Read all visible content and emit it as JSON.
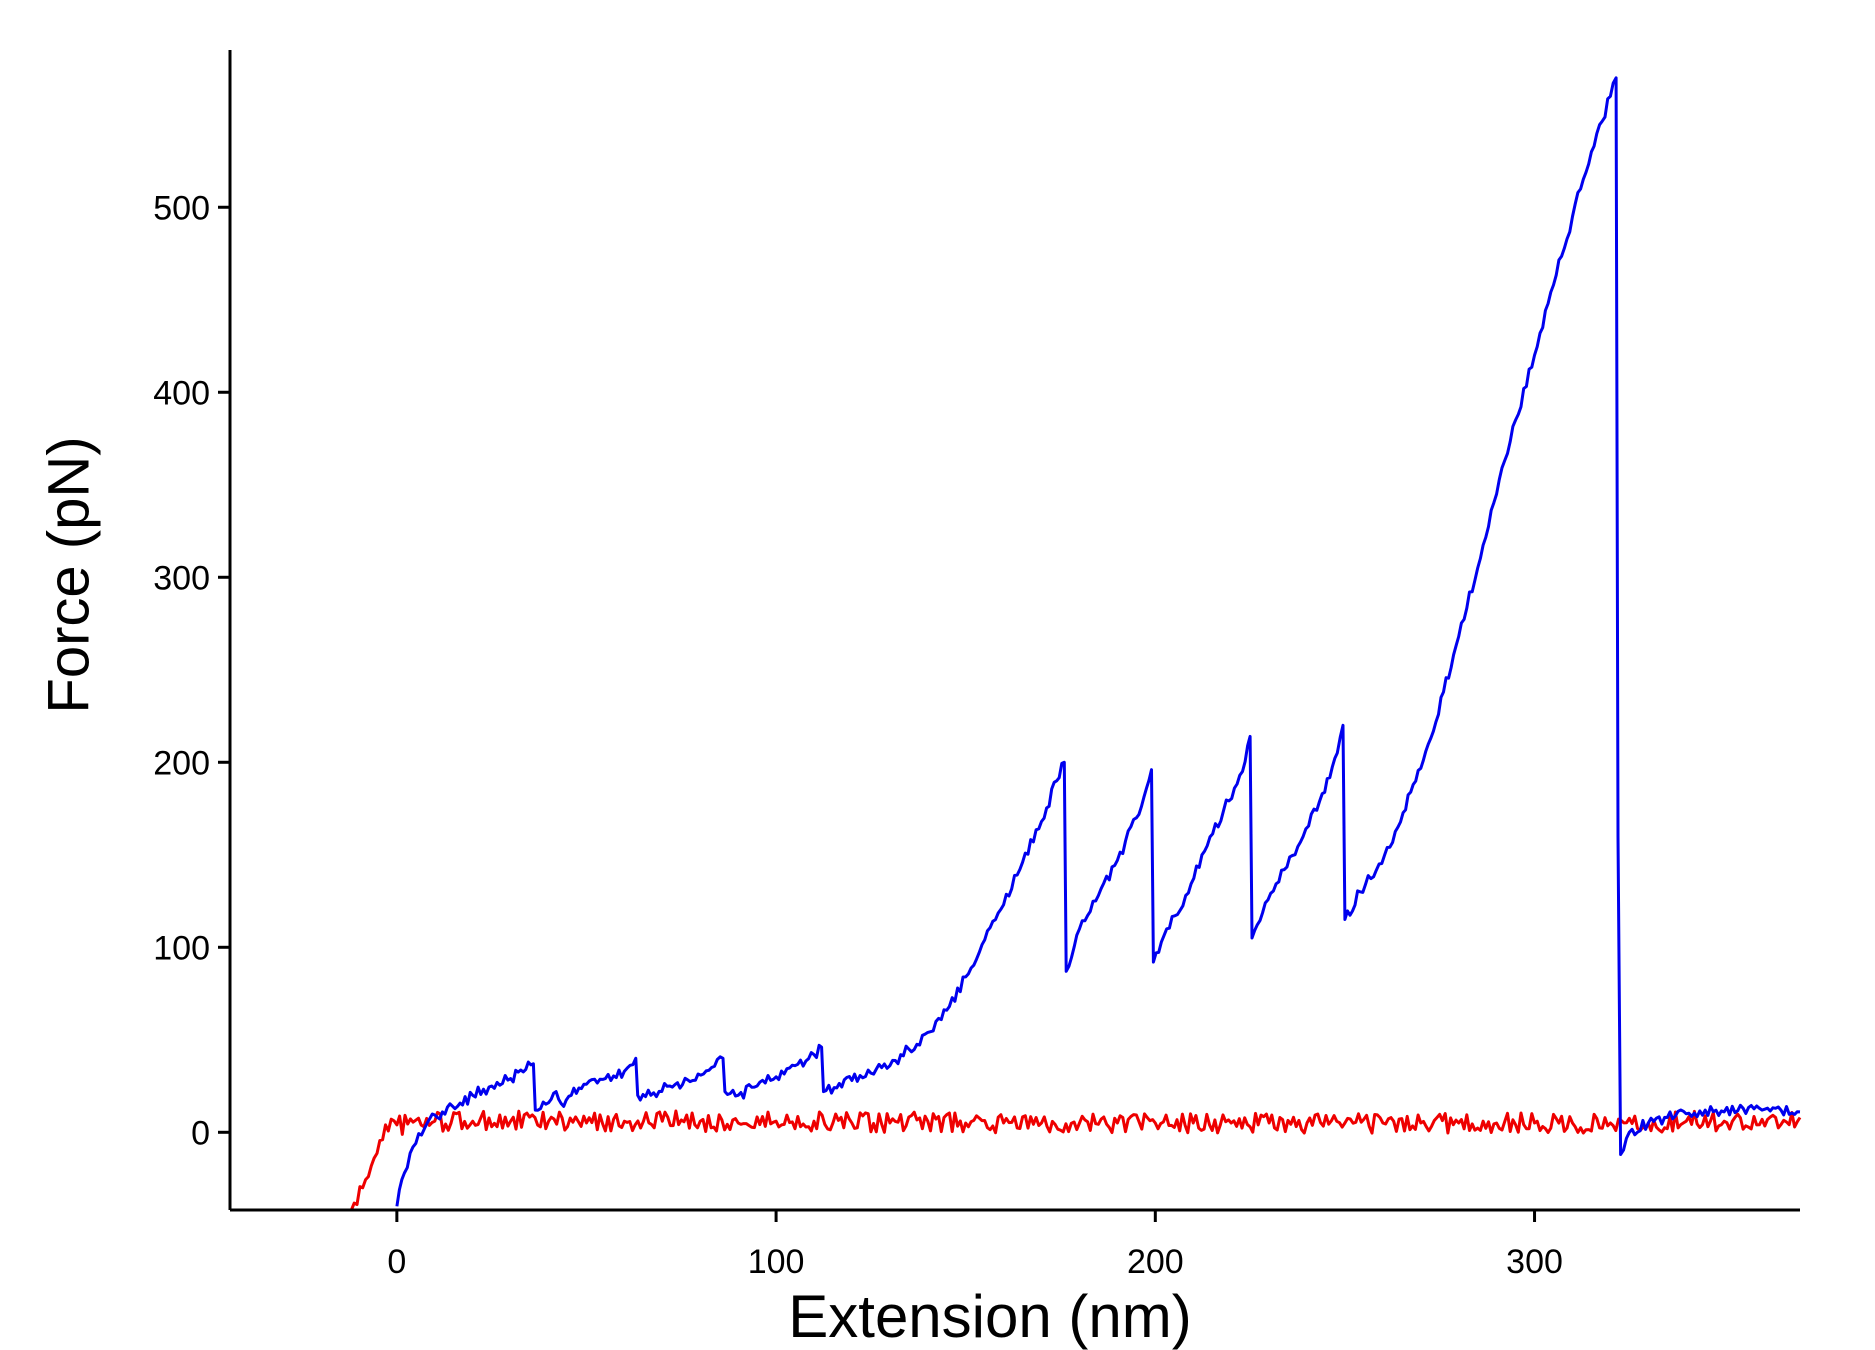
{
  "chart_data": {
    "type": "line",
    "title": "",
    "xlabel": "Extension (nm)",
    "ylabel": "Force (pN)",
    "xlim": [
      -44,
      370
    ],
    "ylim": [
      -42,
      585
    ],
    "x_ticks": [
      0,
      100,
      200,
      300
    ],
    "y_ticks": [
      0,
      100,
      200,
      300,
      400,
      500
    ],
    "grid": false,
    "legend": "none",
    "series": [
      {
        "color": "#0000ee",
        "points": [
          [
            0,
            -40
          ],
          [
            2,
            -22
          ],
          [
            5,
            -6
          ],
          [
            8,
            5
          ],
          [
            12,
            11
          ],
          [
            16,
            14
          ],
          [
            20,
            20
          ],
          [
            25,
            25
          ],
          [
            30,
            29
          ],
          [
            34,
            34
          ],
          [
            36,
            37
          ],
          [
            36.5,
            12
          ],
          [
            40,
            16
          ],
          [
            42,
            22
          ],
          [
            44,
            14
          ],
          [
            46,
            20
          ],
          [
            50,
            26
          ],
          [
            55,
            29
          ],
          [
            60,
            33
          ],
          [
            63,
            40
          ],
          [
            63.5,
            20
          ],
          [
            67,
            20
          ],
          [
            72,
            25
          ],
          [
            78,
            28
          ],
          [
            83,
            35
          ],
          [
            86,
            40
          ],
          [
            86.5,
            22
          ],
          [
            90,
            20
          ],
          [
            95,
            25
          ],
          [
            100,
            30
          ],
          [
            105,
            36
          ],
          [
            110,
            42
          ],
          [
            112,
            46
          ],
          [
            112.5,
            22
          ],
          [
            116,
            24
          ],
          [
            120,
            28
          ],
          [
            125,
            32
          ],
          [
            130,
            36
          ],
          [
            135,
            45
          ],
          [
            140,
            54
          ],
          [
            145,
            66
          ],
          [
            150,
            84
          ],
          [
            155,
            104
          ],
          [
            160,
            123
          ],
          [
            165,
            146
          ],
          [
            170,
            168
          ],
          [
            174,
            190
          ],
          [
            176,
            200
          ],
          [
            176.5,
            87
          ],
          [
            180,
            110
          ],
          [
            185,
            128
          ],
          [
            190,
            147
          ],
          [
            195,
            170
          ],
          [
            199,
            196
          ],
          [
            199.5,
            92
          ],
          [
            203,
            110
          ],
          [
            208,
            128
          ],
          [
            213,
            152
          ],
          [
            218,
            174
          ],
          [
            223,
            195
          ],
          [
            225,
            214
          ],
          [
            225.5,
            105
          ],
          [
            229,
            124
          ],
          [
            234,
            142
          ],
          [
            239,
            160
          ],
          [
            244,
            183
          ],
          [
            248,
            205
          ],
          [
            249.5,
            220
          ],
          [
            250,
            115
          ],
          [
            254,
            130
          ],
          [
            259,
            145
          ],
          [
            264,
            165
          ],
          [
            268,
            188
          ],
          [
            272,
            210
          ],
          [
            276,
            238
          ],
          [
            280,
            268
          ],
          [
            285,
            305
          ],
          [
            290,
            345
          ],
          [
            295,
            385
          ],
          [
            300,
            420
          ],
          [
            305,
            458
          ],
          [
            310,
            495
          ],
          [
            315,
            530
          ],
          [
            320,
            560
          ],
          [
            321.5,
            570
          ],
          [
            322,
            160
          ],
          [
            322.7,
            -12
          ],
          [
            325,
            0
          ],
          [
            330,
            5
          ],
          [
            335,
            8
          ],
          [
            340,
            10
          ],
          [
            345,
            12
          ],
          [
            350,
            11
          ],
          [
            355,
            13
          ],
          [
            360,
            12
          ],
          [
            365,
            12
          ],
          [
            370,
            11
          ]
        ]
      },
      {
        "color": "#ee0000",
        "points": [
          [
            -12,
            -42
          ],
          [
            -9,
            -30
          ],
          [
            -6,
            -14
          ],
          [
            -3,
            4
          ],
          [
            0,
            4
          ],
          [
            10,
            6
          ],
          [
            20,
            6
          ],
          [
            30,
            6
          ],
          [
            40,
            6
          ],
          [
            50,
            5
          ],
          [
            60,
            6
          ],
          [
            70,
            6
          ],
          [
            80,
            6
          ],
          [
            90,
            5
          ],
          [
            100,
            6
          ],
          [
            110,
            6
          ],
          [
            120,
            5
          ],
          [
            130,
            5
          ],
          [
            140,
            6
          ],
          [
            150,
            5
          ],
          [
            160,
            5
          ],
          [
            170,
            5
          ],
          [
            180,
            5
          ],
          [
            190,
            5
          ],
          [
            200,
            5
          ],
          [
            210,
            5
          ],
          [
            220,
            5
          ],
          [
            230,
            5
          ],
          [
            240,
            5
          ],
          [
            250,
            5
          ],
          [
            260,
            5
          ],
          [
            270,
            5
          ],
          [
            280,
            5
          ],
          [
            290,
            5
          ],
          [
            300,
            5
          ],
          [
            310,
            5
          ],
          [
            320,
            5
          ],
          [
            330,
            5
          ],
          [
            340,
            6
          ],
          [
            350,
            6
          ],
          [
            360,
            7
          ],
          [
            370,
            8
          ]
        ]
      }
    ]
  }
}
